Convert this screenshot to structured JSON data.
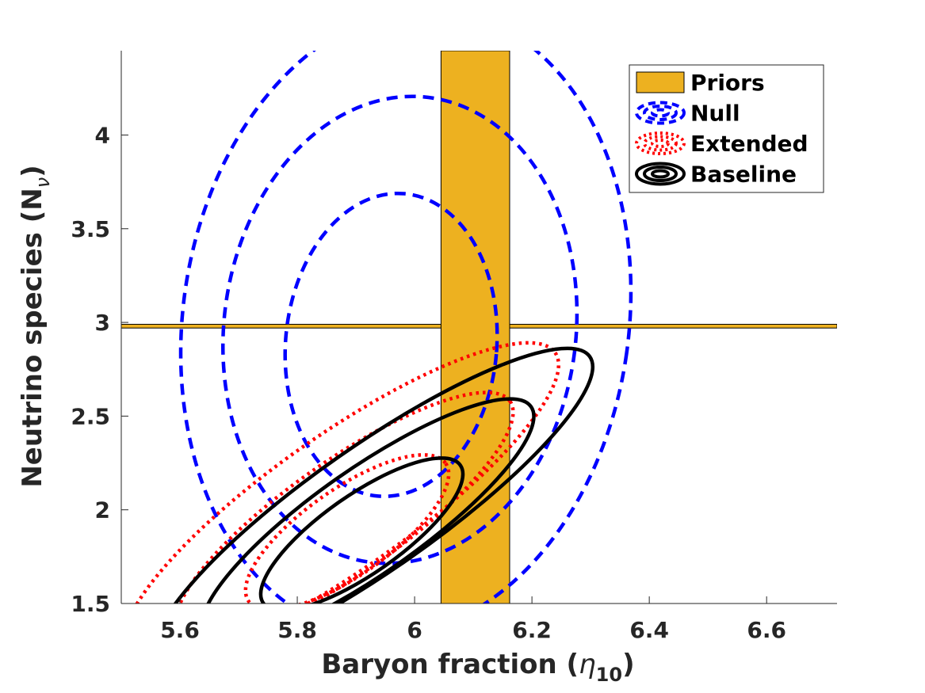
{
  "chart_data": {
    "type": "contour",
    "xlabel": {
      "main": "Baryon fraction (",
      "symbol": "η",
      "sub": "10",
      "close": ")"
    },
    "ylabel": {
      "main": "Neutrino species (N",
      "sub": "ν",
      "close": ")"
    },
    "xlim": [
      5.5,
      6.72
    ],
    "ylim": [
      1.5,
      4.45
    ],
    "xticks": [
      5.6,
      5.8,
      6.0,
      6.2,
      6.4,
      6.6
    ],
    "xtick_labels": [
      "5.6",
      "5.8",
      "6",
      "6.2",
      "6.4",
      "6.6"
    ],
    "yticks": [
      1.5,
      2.0,
      2.5,
      3.0,
      3.5,
      4.0
    ],
    "ytick_labels": [
      "1.5",
      "2",
      "2.5",
      "3",
      "3.5",
      "4"
    ],
    "grid": false,
    "legend_position": "top-right",
    "priors": {
      "name": "Priors",
      "color": "#EDB120",
      "vertical_band": {
        "x_min": 6.045,
        "x_max": 6.162
      },
      "horizontal_band": {
        "y_min": 2.97,
        "y_max": 2.99
      }
    },
    "series": [
      {
        "name": "Null",
        "color": "#0000FF",
        "style": "dashed",
        "contours": [
          {
            "cx": 5.96,
            "cy": 2.88,
            "rx": 0.18,
            "ry": 0.81,
            "angle": -5
          },
          {
            "cx": 5.975,
            "cy": 2.96,
            "rx": 0.3,
            "ry": 1.25,
            "angle": -7
          },
          {
            "cx": 5.985,
            "cy": 3.0,
            "rx": 0.38,
            "ry": 1.68,
            "angle": -8
          }
        ]
      },
      {
        "name": "Extended",
        "color": "#FF0000",
        "style": "dotted",
        "contours": [
          {
            "cx": 5.885,
            "cy": 1.88,
            "rx": 0.205,
            "ry": 0.23,
            "angle": 35
          },
          {
            "cx": 5.88,
            "cy": 1.96,
            "rx": 0.345,
            "ry": 0.3,
            "angle": 35
          },
          {
            "cx": 5.875,
            "cy": 2.04,
            "rx": 0.445,
            "ry": 0.36,
            "angle": 35
          }
        ]
      },
      {
        "name": "Baseline",
        "color": "#000000",
        "style": "solid",
        "contours": [
          {
            "cx": 5.91,
            "cy": 1.87,
            "rx": 0.205,
            "ry": 0.21,
            "angle": 35
          },
          {
            "cx": 5.92,
            "cy": 1.94,
            "rx": 0.34,
            "ry": 0.28,
            "angle": 35
          },
          {
            "cx": 5.93,
            "cy": 2.01,
            "rx": 0.45,
            "ry": 0.33,
            "angle": 35
          }
        ]
      }
    ]
  }
}
